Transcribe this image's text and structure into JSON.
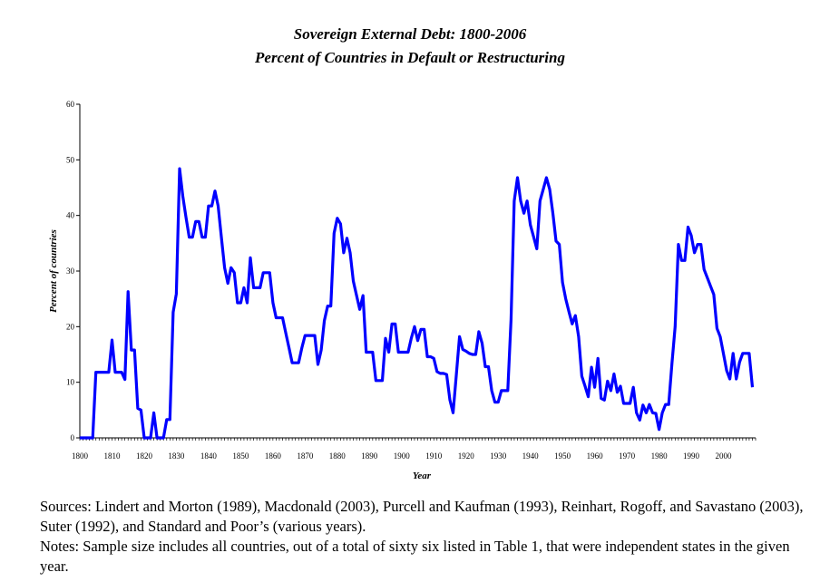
{
  "chart_data": {
    "type": "line",
    "title": "Sovereign External Debt: 1800-2006",
    "subtitle": "Percent of Countries in Default or Restructuring",
    "xlabel": "Year",
    "ylabel": "Percent of countries",
    "xlim": [
      1800,
      2010
    ],
    "ylim": [
      0,
      60
    ],
    "y_ticks": [
      0,
      10,
      20,
      30,
      40,
      50,
      60
    ],
    "x_ticks": [
      1800,
      1810,
      1820,
      1830,
      1840,
      1850,
      1860,
      1870,
      1880,
      1890,
      1900,
      1910,
      1920,
      1930,
      1940,
      1950,
      1960,
      1970,
      1980,
      1990,
      2000
    ],
    "grid": false,
    "line_color": "#0000ff",
    "x_start": 1800,
    "values": [
      0,
      0,
      0,
      0,
      0,
      11.8,
      11.8,
      11.8,
      11.8,
      11.8,
      17.6,
      11.8,
      11.8,
      11.8,
      10.5,
      26.3,
      15.8,
      15.8,
      5.3,
      5.0,
      0,
      0,
      0,
      4.5,
      0,
      0,
      0,
      3.3,
      3.3,
      22.6,
      25.9,
      48.4,
      43.5,
      39.6,
      36.1,
      36.1,
      38.9,
      38.9,
      36.1,
      36.1,
      41.7,
      41.7,
      44.4,
      41.7,
      36.0,
      30.6,
      27.8,
      30.6,
      29.7,
      24.3,
      24.3,
      27.0,
      24.3,
      32.4,
      27.0,
      27.0,
      27.0,
      29.7,
      29.7,
      29.7,
      24.3,
      21.6,
      21.6,
      21.6,
      18.9,
      16.2,
      13.5,
      13.5,
      13.5,
      16.2,
      18.4,
      18.4,
      18.4,
      18.4,
      13.2,
      15.8,
      21.1,
      23.7,
      23.7,
      36.8,
      39.5,
      38.5,
      33.3,
      35.9,
      33.3,
      28.2,
      25.6,
      23.1,
      25.6,
      15.4,
      15.4,
      15.4,
      10.3,
      10.3,
      10.3,
      17.9,
      15.4,
      20.5,
      20.5,
      15.4,
      15.4,
      15.4,
      15.4,
      17.9,
      20.0,
      17.5,
      19.5,
      19.5,
      14.6,
      14.6,
      14.3,
      11.9,
      11.6,
      11.6,
      11.4,
      6.8,
      4.5,
      11.4,
      18.2,
      15.9,
      15.6,
      15.2,
      15.0,
      15.0,
      19.1,
      17.0,
      12.8,
      12.8,
      8.5,
      6.4,
      6.4,
      8.5,
      8.5,
      8.5,
      21.3,
      42.6,
      46.8,
      42.6,
      40.4,
      42.6,
      38.3,
      36.2,
      34.0,
      42.6,
      44.7,
      46.8,
      44.7,
      40.4,
      35.4,
      34.8,
      28.0,
      25.0,
      22.7,
      20.5,
      22.0,
      18.2,
      11.1,
      9.3,
      7.4,
      12.7,
      9.1,
      14.3,
      7.1,
      6.8,
      10.2,
      8.5,
      11.5,
      8.2,
      9.3,
      6.2,
      6.2,
      6.2,
      9.1,
      4.5,
      3.2,
      5.9,
      4.5,
      6.0,
      4.5,
      4.4,
      1.5,
      4.5,
      6.0,
      6.0,
      13.4,
      20.0,
      34.8,
      31.9,
      31.9,
      37.9,
      36.4,
      33.3,
      34.8,
      34.8,
      30.3,
      28.8,
      27.3,
      25.8,
      19.7,
      18.2,
      15.2,
      12.1,
      10.6,
      15.2,
      10.6,
      13.6,
      15.2,
      15.2,
      15.2,
      9.1
    ]
  },
  "notes": {
    "sources": "Sources: Lindert and Morton (1989), Macdonald (2003), Purcell and Kaufman (1993), Reinhart, Rogoff, and Savastano (2003), Suter (1992), and Standard and Poor’s (various years).",
    "notes": "Notes: Sample size includes all countries, out of a total of sixty six listed in Table 1, that were independent states in the given year."
  }
}
